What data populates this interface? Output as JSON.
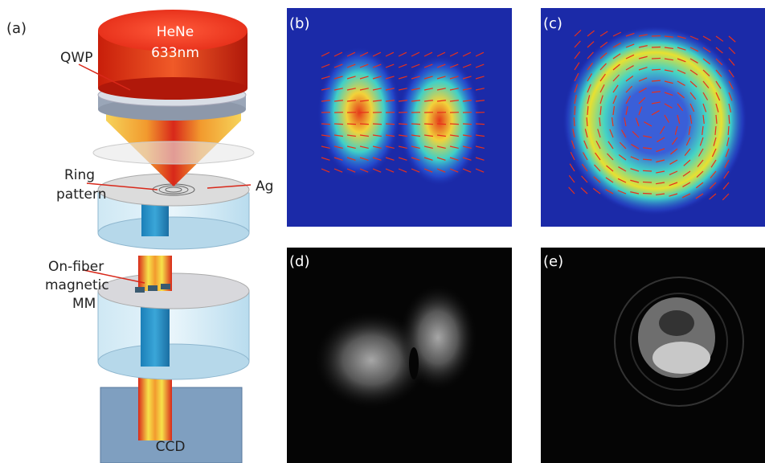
{
  "panel_labels": [
    "(a)",
    "(b)",
    "(c)",
    "(d)",
    "(e)"
  ],
  "diagram": {
    "laser": [
      "HeNe",
      "633nm"
    ],
    "qwp": "QWP",
    "ring_pattern": [
      "Ring",
      "pattern"
    ],
    "ag": "Ag",
    "metamaterial": [
      "On-fiber",
      "magnetic",
      "MM"
    ],
    "detector": "CCD"
  }
}
